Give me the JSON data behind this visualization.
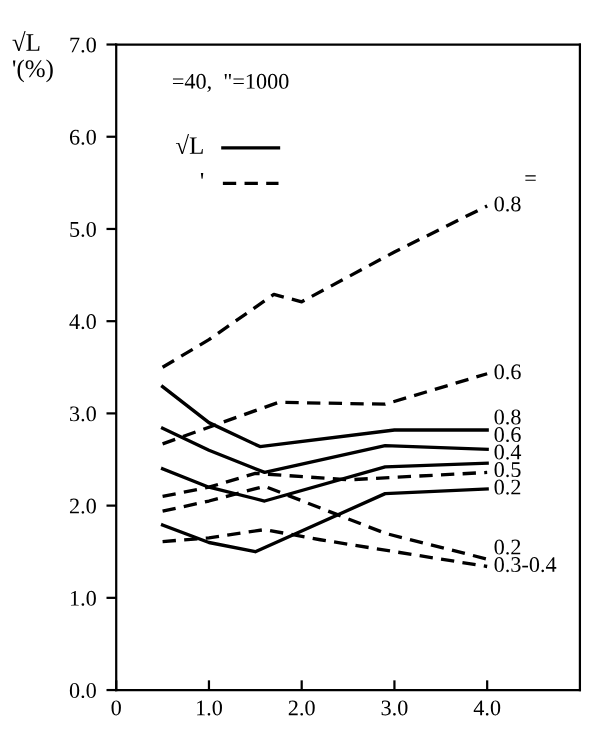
{
  "chart_data": {
    "type": "line",
    "ylabel": "√L\n'(%)",
    "xlim": [
      0,
      5.0
    ],
    "ylim": [
      0,
      7.0
    ],
    "xticks": [
      {
        "value": 0,
        "label": "0"
      },
      {
        "value": 1,
        "label": "1.0"
      },
      {
        "value": 2,
        "label": "2.0"
      },
      {
        "value": 3,
        "label": "3.0"
      },
      {
        "value": 4,
        "label": "4.0"
      }
    ],
    "yticks": [
      {
        "value": 0,
        "label": "0.0"
      },
      {
        "value": 1,
        "label": "1.0"
      },
      {
        "value": 2,
        "label": "2.0"
      },
      {
        "value": 3,
        "label": "3.0"
      },
      {
        "value": 4,
        "label": "4.0"
      },
      {
        "value": 5,
        "label": "5.0"
      },
      {
        "value": 6,
        "label": "6.0"
      },
      {
        "value": 7,
        "label": "7.0"
      }
    ],
    "grid": false,
    "marker": "none",
    "annotations": [
      "=40,  \"=1000",
      "√L",
      "'",
      "="
    ],
    "series": [
      {
        "name": "0.8",
        "color": "#000000",
        "line_style": "dashed",
        "x": [
          0.5,
          1.0,
          1.7,
          2.0,
          3.0,
          4.0
        ],
        "values": [
          3.5,
          3.8,
          4.29,
          4.21,
          4.75,
          5.25
        ]
      },
      {
        "name": "0.6",
        "color": "#000000",
        "line_style": "dashed",
        "x": [
          0.5,
          1.0,
          1.75,
          2.9,
          4.0
        ],
        "values": [
          2.67,
          2.85,
          3.12,
          3.1,
          3.43
        ]
      },
      {
        "name": "0.8",
        "color": "#000000",
        "line_style": "solid",
        "x": [
          0.5,
          1.0,
          1.55,
          3.0,
          4.0
        ],
        "values": [
          3.29,
          2.9,
          2.64,
          2.82,
          2.82
        ]
      },
      {
        "name": "0.6",
        "color": "#000000",
        "line_style": "solid",
        "x": [
          0.5,
          1.0,
          1.6,
          2.9,
          4.0
        ],
        "values": [
          2.84,
          2.6,
          2.36,
          2.65,
          2.61
        ]
      },
      {
        "name": "0.4",
        "color": "#000000",
        "line_style": "solid",
        "x": [
          0.5,
          1.0,
          1.6,
          2.9,
          4.0
        ],
        "values": [
          2.4,
          2.2,
          2.05,
          2.42,
          2.46
        ]
      },
      {
        "name": "0.5",
        "color": "#000000",
        "line_style": "dashed",
        "x": [
          0.5,
          1.0,
          1.5,
          2.5,
          4.0
        ],
        "values": [
          2.1,
          2.2,
          2.35,
          2.28,
          2.36
        ]
      },
      {
        "name": "0.2",
        "color": "#000000",
        "line_style": "solid",
        "x": [
          0.5,
          1.0,
          1.5,
          2.9,
          4.0
        ],
        "values": [
          1.79,
          1.6,
          1.5,
          2.13,
          2.18
        ]
      },
      {
        "name": "0.2",
        "color": "#000000",
        "line_style": "dashed",
        "x": [
          0.5,
          1.0,
          1.6,
          2.9,
          4.0
        ],
        "values": [
          1.94,
          2.05,
          2.21,
          1.7,
          1.42
        ]
      },
      {
        "name": "0.3-0.4",
        "color": "#000000",
        "line_style": "dashed",
        "x": [
          0.5,
          1.0,
          1.6,
          2.2,
          4.0
        ],
        "values": [
          1.61,
          1.65,
          1.74,
          1.63,
          1.34
        ]
      }
    ]
  }
}
